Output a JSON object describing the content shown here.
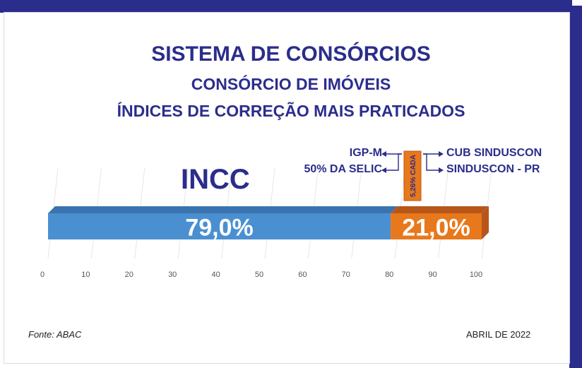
{
  "chart_data": {
    "type": "bar",
    "orientation": "horizontal-stacked",
    "title": "SISTEMA DE CONSÓRCIOS",
    "subtitle_1": "CONSÓRCIO DE IMÓVEIS",
    "subtitle_2": "ÍNDICES DE CORREÇÃO MAIS PRATICADOS",
    "xlim": [
      0,
      100
    ],
    "x_ticks": [
      "0",
      "10",
      "20",
      "30",
      "40",
      "50",
      "60",
      "70",
      "80",
      "90",
      "100"
    ],
    "series": [
      {
        "name": "INCC",
        "value": 79.0,
        "label": "79,0%",
        "color": "#4a90d1",
        "color_top": "#3a74b0"
      },
      {
        "name": "",
        "value": 21.0,
        "label": "21,0%",
        "color": "#e8781c",
        "color_top": "#b8561a"
      }
    ],
    "annotations": {
      "left": [
        "IGP-M",
        "50% DA SELIC"
      ],
      "right": [
        "CUB SINDUSCON",
        "SINDUSCON - PR"
      ],
      "vertical": "5,26% CADA"
    },
    "grid": true
  },
  "footer": {
    "source": "Fonte: ABAC",
    "date": "ABRIL DE 2022"
  },
  "colors": {
    "frame": "#2b2d8c",
    "title": "#2b2d8c"
  }
}
